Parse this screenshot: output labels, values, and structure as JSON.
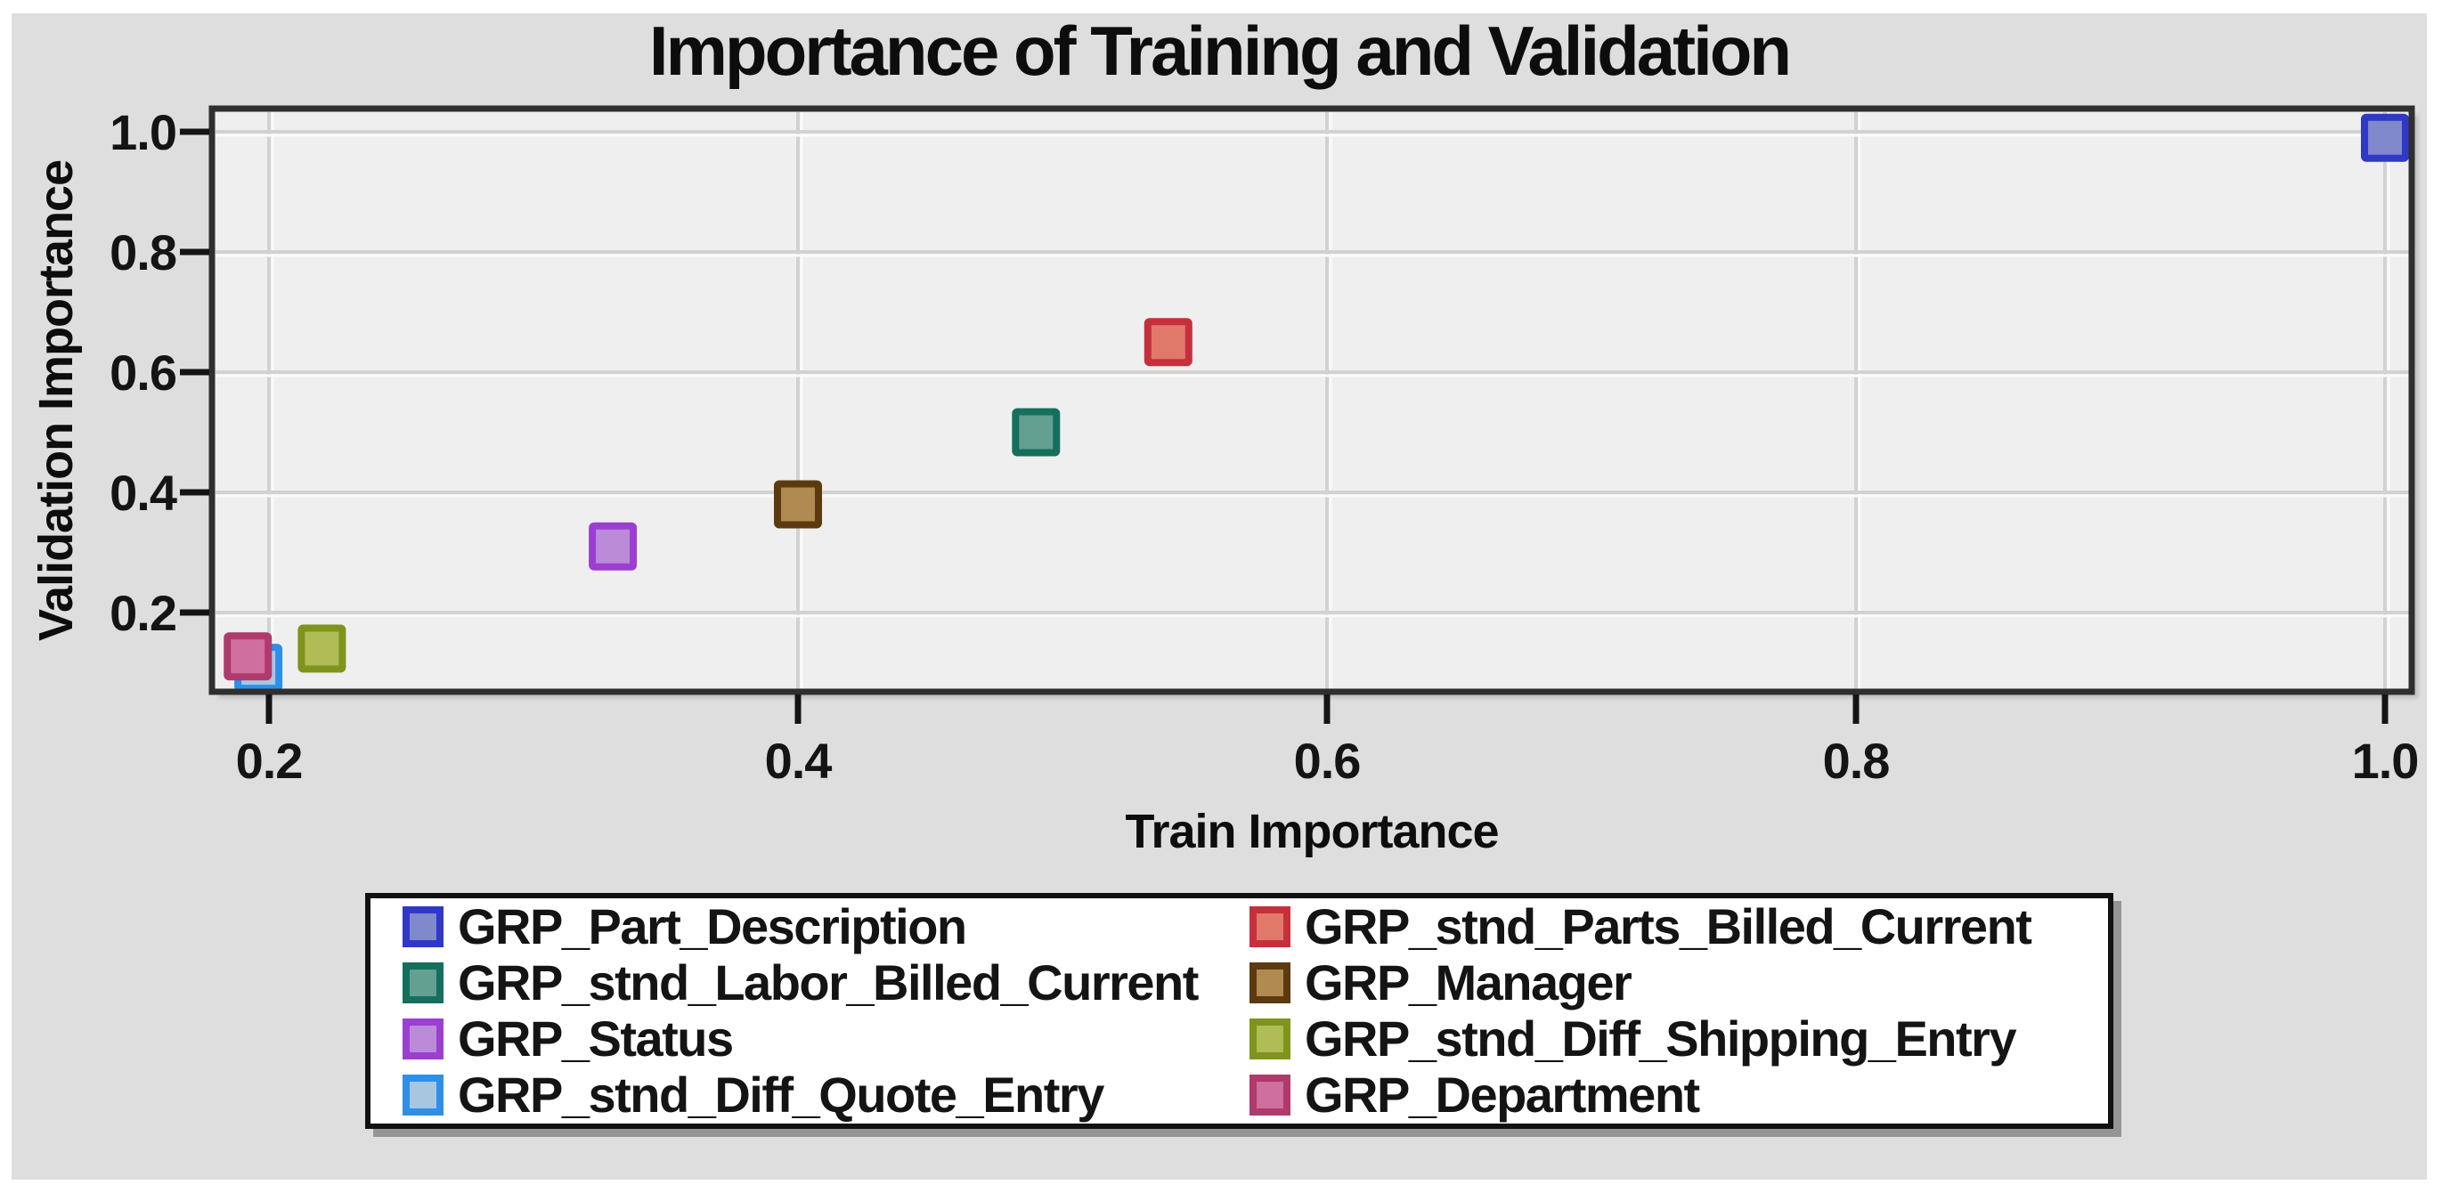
{
  "chart_data": {
    "type": "scatter",
    "title": "Importance of Training and Validation",
    "xlabel": "Train Importance",
    "ylabel": "Validation Importance",
    "x_tick_labels": [
      "0.2",
      "0.4",
      "0.6",
      "0.8",
      "1.0"
    ],
    "y_tick_labels": [
      "1.0",
      "0.8",
      "0.6",
      "0.4",
      "0.2"
    ],
    "xlim": [
      0.178,
      1.01
    ],
    "ylim": [
      0.068,
      1.039
    ],
    "grid": true,
    "marker": "square",
    "legend_position": "bottom-center",
    "series": [
      {
        "name": "GRP_Part_Description",
        "x": 1.0,
        "y": 0.99,
        "border": "#3038c8",
        "fill": "#8089cc"
      },
      {
        "name": "GRP_stnd_Parts_Billed_Current",
        "x": 0.54,
        "y": 0.65,
        "border": "#c5303c",
        "fill": "#e1796b"
      },
      {
        "name": "GRP_stnd_Labor_Billed_Current",
        "x": 0.49,
        "y": 0.5,
        "border": "#156f5c",
        "fill": "#64a091"
      },
      {
        "name": "GRP_Manager",
        "x": 0.4,
        "y": 0.38,
        "border": "#5c3a10",
        "fill": "#b08a50"
      },
      {
        "name": "GRP_Status",
        "x": 0.33,
        "y": 0.31,
        "border": "#9b3fd1",
        "fill": "#bb8bd8"
      },
      {
        "name": "GRP_stnd_Diff_Shipping_Entry",
        "x": 0.22,
        "y": 0.14,
        "border": "#7e941c",
        "fill": "#b0bc55"
      },
      {
        "name": "GRP_stnd_Diff_Quote_Entry",
        "x": 0.196,
        "y": 0.108,
        "border": "#2e8fe8",
        "fill": "#a8c6e0"
      },
      {
        "name": "GRP_Department",
        "x": 0.192,
        "y": 0.127,
        "border": "#af3a6c",
        "fill": "#ce6f9e"
      }
    ],
    "colors": {
      "page_bg": "#ffffff",
      "canvas_bg": "#dedede",
      "plot_bg": "#efefef",
      "frame": "#2f2f2f",
      "grid": "#d2d2d2",
      "grid_highlight": "#fafafa",
      "tick": "#141414",
      "text": "#0d0d0d",
      "legend_bg": "#ffffff",
      "legend_border": "#111111"
    }
  }
}
